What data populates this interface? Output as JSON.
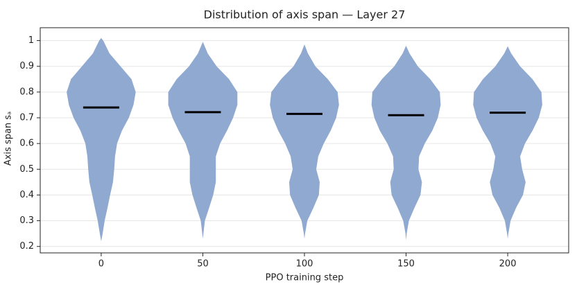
{
  "chart_data": {
    "type": "violin",
    "title": "Distribution of axis span — Layer 27",
    "xlabel": "PPO training step",
    "ylabel": "Axis span sₐ",
    "color": "#8fa9d0",
    "median_color": "#000000",
    "grid": true,
    "xlim": [
      -30,
      230
    ],
    "xticks": [
      0,
      50,
      100,
      150,
      200
    ],
    "ylim": [
      0.175,
      1.05
    ],
    "yticks": [
      0.2,
      0.3,
      0.4,
      0.5,
      0.6,
      0.7,
      0.8,
      0.9,
      1.0
    ],
    "x": [
      0,
      50,
      100,
      150,
      200
    ],
    "violins": [
      {
        "median": 0.74,
        "kde_y": [
          0.22,
          0.25,
          0.3,
          0.35,
          0.4,
          0.45,
          0.5,
          0.55,
          0.6,
          0.65,
          0.7,
          0.75,
          0.8,
          0.85,
          0.9,
          0.95,
          1.0,
          1.01
        ],
        "kde_halfwidth": [
          0,
          0.7,
          1.7,
          3.1,
          4.4,
          5.8,
          6.4,
          6.8,
          7.8,
          10.2,
          13.6,
          15.9,
          17,
          14.9,
          9.5,
          4.1,
          1,
          0
        ]
      },
      {
        "median": 0.722,
        "kde_y": [
          0.23,
          0.25,
          0.3,
          0.35,
          0.4,
          0.45,
          0.5,
          0.55,
          0.6,
          0.65,
          0.7,
          0.75,
          0.8,
          0.85,
          0.9,
          0.95,
          0.995
        ],
        "kde_halfwidth": [
          0,
          0.3,
          1,
          3.1,
          5.1,
          6.4,
          6.4,
          6.4,
          8.5,
          11.9,
          14.9,
          17,
          17,
          12.9,
          6.8,
          2.4,
          0
        ]
      },
      {
        "median": 0.715,
        "kde_y": [
          0.23,
          0.25,
          0.3,
          0.35,
          0.4,
          0.45,
          0.5,
          0.55,
          0.6,
          0.65,
          0.7,
          0.75,
          0.8,
          0.85,
          0.9,
          0.95,
          0.985
        ],
        "kde_halfwidth": [
          0,
          0.3,
          1.4,
          4.4,
          7.1,
          7.5,
          5.8,
          6.8,
          9.5,
          12.9,
          15.6,
          17,
          16.3,
          11.5,
          5.4,
          1.7,
          0
        ]
      },
      {
        "median": 0.71,
        "kde_y": [
          0.225,
          0.25,
          0.3,
          0.35,
          0.4,
          0.45,
          0.5,
          0.55,
          0.6,
          0.65,
          0.7,
          0.75,
          0.8,
          0.85,
          0.9,
          0.95,
          0.98
        ],
        "kde_halfwidth": [
          0,
          0.3,
          1.4,
          4.1,
          7.1,
          7.8,
          6.1,
          6.4,
          9.2,
          12.9,
          15.6,
          17,
          16.6,
          11.9,
          5.8,
          1.7,
          0
        ]
      },
      {
        "median": 0.72,
        "kde_y": [
          0.23,
          0.25,
          0.3,
          0.35,
          0.4,
          0.45,
          0.5,
          0.55,
          0.6,
          0.65,
          0.7,
          0.75,
          0.8,
          0.85,
          0.9,
          0.95,
          0.978
        ],
        "kde_halfwidth": [
          0,
          0.3,
          1.4,
          4.1,
          7.5,
          8.8,
          7.1,
          6.1,
          8.5,
          12.2,
          15.3,
          17,
          16.6,
          12.2,
          6.1,
          1.7,
          0
        ]
      }
    ]
  }
}
